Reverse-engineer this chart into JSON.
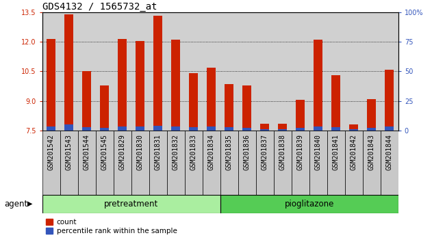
{
  "title": "GDS4132 / 1565732_at",
  "samples": [
    "GSM201542",
    "GSM201543",
    "GSM201544",
    "GSM201545",
    "GSM201829",
    "GSM201830",
    "GSM201831",
    "GSM201832",
    "GSM201833",
    "GSM201834",
    "GSM201835",
    "GSM201836",
    "GSM201837",
    "GSM201838",
    "GSM201839",
    "GSM201840",
    "GSM201841",
    "GSM201842",
    "GSM201843",
    "GSM201844"
  ],
  "count_values": [
    12.15,
    13.4,
    10.5,
    9.8,
    12.15,
    12.05,
    13.3,
    12.1,
    10.4,
    10.7,
    9.85,
    9.8,
    7.85,
    7.85,
    9.05,
    12.1,
    10.3,
    7.8,
    9.1,
    10.6
  ],
  "percentile_values": [
    3.5,
    5.0,
    3.0,
    2.5,
    3.5,
    3.5,
    4.0,
    3.5,
    3.0,
    3.5,
    3.0,
    2.5,
    1.5,
    1.5,
    2.5,
    3.5,
    3.0,
    1.5,
    2.5,
    3.5
  ],
  "ymin": 7.5,
  "ymax": 13.5,
  "y_ticks": [
    7.5,
    9.0,
    10.5,
    12.0,
    13.5
  ],
  "y2min": 0,
  "y2max": 100,
  "y2_ticks": [
    0,
    25,
    50,
    75,
    100
  ],
  "bar_color_count": "#cc2200",
  "bar_color_pct": "#3355bb",
  "bg_color": "#d0d0d0",
  "col_bg_color": "#c8c8c8",
  "pretreatment_samples": 10,
  "pretreatment_color": "#aaeea0",
  "pioglitazone_color": "#55cc55",
  "agent_label": "agent",
  "group1_label": "pretreatment",
  "group2_label": "pioglitazone",
  "legend_count": "count",
  "legend_pct": "percentile rank within the sample",
  "title_fontsize": 10,
  "tick_fontsize": 7,
  "bar_width": 0.5
}
